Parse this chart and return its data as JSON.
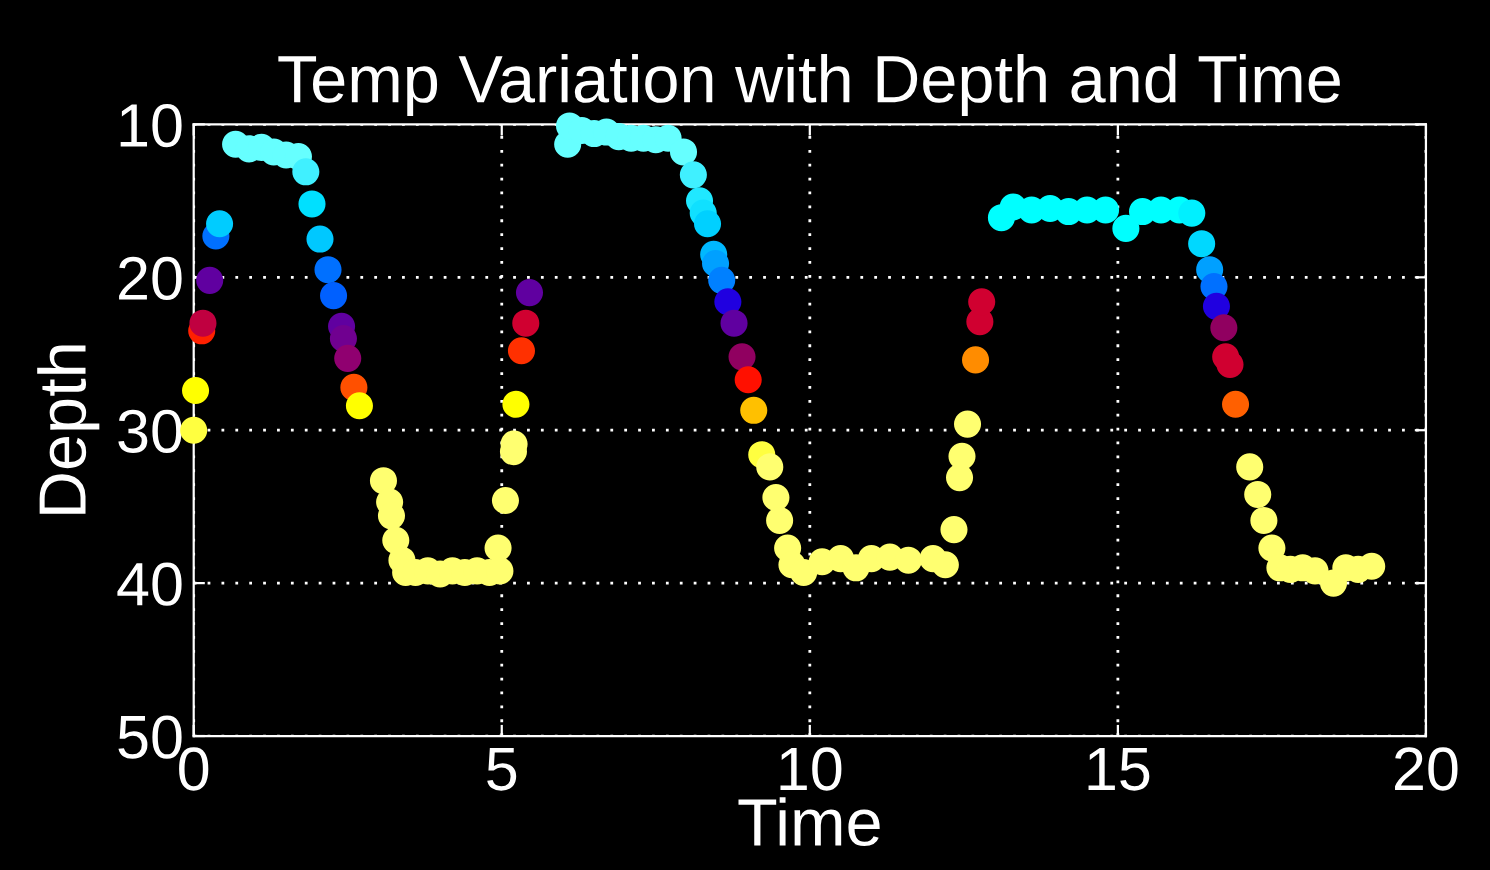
{
  "chart_data": {
    "type": "scatter",
    "title": "Temp Variation with Depth and Time",
    "xlabel": "Time",
    "ylabel": "Depth",
    "xlim": [
      0,
      20
    ],
    "xticks": [
      0,
      5,
      10,
      15,
      20
    ],
    "ylim": [
      50,
      10
    ],
    "yticks": [
      10,
      20,
      30,
      40,
      50
    ],
    "grid": true,
    "marker": "circle",
    "x": [
      0.0,
      0.03,
      0.13,
      0.15,
      0.26,
      0.36,
      0.42,
      0.68,
      0.9,
      1.1,
      1.3,
      1.5,
      1.7,
      1.82,
      1.92,
      2.05,
      2.18,
      2.27,
      2.4,
      2.43,
      2.5,
      2.6,
      2.69,
      3.08,
      3.18,
      3.21,
      3.28,
      3.38,
      3.44,
      3.6,
      3.8,
      4.0,
      4.2,
      4.4,
      4.6,
      4.8,
      4.94,
      4.97,
      5.06,
      5.19,
      5.2,
      5.23,
      5.32,
      5.39,
      5.45,
      6.07,
      6.1,
      6.3,
      6.5,
      6.7,
      6.9,
      7.1,
      7.3,
      7.5,
      7.7,
      7.95,
      8.11,
      8.21,
      8.27,
      8.34,
      8.44,
      8.47,
      8.57,
      8.67,
      8.77,
      8.9,
      9.0,
      9.09,
      9.22,
      9.35,
      9.45,
      9.51,
      9.64,
      9.71,
      9.9,
      10.2,
      10.5,
      10.75,
      11.0,
      11.3,
      11.6,
      12.0,
      12.2,
      12.34,
      12.43,
      12.47,
      12.56,
      12.69,
      12.76,
      12.79,
      13.11,
      13.3,
      13.6,
      13.9,
      14.2,
      14.5,
      14.8,
      15.13,
      15.4,
      15.7,
      16.0,
      16.2,
      16.36,
      16.49,
      16.56,
      16.6,
      16.72,
      16.75,
      16.82,
      16.91,
      17.14,
      17.27,
      17.37,
      17.5,
      17.63,
      17.8,
      18.0,
      18.2,
      18.5,
      18.7,
      18.9,
      19.12
    ],
    "values": [
      30.0,
      27.4,
      23.5,
      23.0,
      20.2,
      17.3,
      16.5,
      11.3,
      11.6,
      11.5,
      11.8,
      12.0,
      12.1,
      13.1,
      15.2,
      17.5,
      19.5,
      21.2,
      23.2,
      24.0,
      25.3,
      27.2,
      28.4,
      33.3,
      34.7,
      35.6,
      37.2,
      38.5,
      39.3,
      39.3,
      39.2,
      39.4,
      39.2,
      39.3,
      39.2,
      39.3,
      37.7,
      39.2,
      34.6,
      31.4,
      30.9,
      28.3,
      24.8,
      23.0,
      21.0,
      11.3,
      10.1,
      10.4,
      10.6,
      10.5,
      10.8,
      10.9,
      10.9,
      11.0,
      10.9,
      11.8,
      13.3,
      15.0,
      15.8,
      16.5,
      18.5,
      19.1,
      20.2,
      21.6,
      23.0,
      25.2,
      26.7,
      28.7,
      31.6,
      32.4,
      34.4,
      35.9,
      37.7,
      38.8,
      39.3,
      38.6,
      38.4,
      39.0,
      38.4,
      38.3,
      38.5,
      38.4,
      38.8,
      36.5,
      33.1,
      31.7,
      29.6,
      25.4,
      22.9,
      21.6,
      16.1,
      15.4,
      15.6,
      15.5,
      15.7,
      15.6,
      15.6,
      16.8,
      15.7,
      15.6,
      15.6,
      15.8,
      17.8,
      19.5,
      20.6,
      21.9,
      23.3,
      25.2,
      25.7,
      28.3,
      32.4,
      34.2,
      35.9,
      37.7,
      39.0,
      39.1,
      39.0,
      39.2,
      40.0,
      39.0,
      39.1,
      38.9
    ],
    "colors": [
      "#ffff40",
      "#ffff00",
      "#ff2000",
      "#c00040",
      "#6000a0",
      "#0070ff",
      "#00ccff",
      "#66ffff",
      "#66ffff",
      "#66ffff",
      "#66ffff",
      "#66ffff",
      "#66ffff",
      "#40f0ff",
      "#00e0ff",
      "#00c8ff",
      "#0070ff",
      "#0060ff",
      "#6000a0",
      "#700090",
      "#900070",
      "#ff5000",
      "#ffff00",
      "#ffff70",
      "#ffff70",
      "#ffff70",
      "#ffff70",
      "#ffff70",
      "#ffff70",
      "#ffff70",
      "#ffff70",
      "#ffff70",
      "#ffff70",
      "#ffff70",
      "#ffff70",
      "#ffff70",
      "#ffff70",
      "#ffff70",
      "#ffff70",
      "#ffff70",
      "#ffff70",
      "#ffff00",
      "#ff3000",
      "#d00030",
      "#6000a0",
      "#66ffff",
      "#66ffff",
      "#66ffff",
      "#66ffff",
      "#66ffff",
      "#66ffff",
      "#66ffff",
      "#66ffff",
      "#66ffff",
      "#66ffff",
      "#66ffff",
      "#40f0ff",
      "#20e8ff",
      "#10e0ff",
      "#00d0ff",
      "#00b8ff",
      "#00a0ff",
      "#0080ff",
      "#2000e0",
      "#6000a0",
      "#900060",
      "#ff1000",
      "#ffc000",
      "#ffff40",
      "#ffff70",
      "#ffff70",
      "#ffff70",
      "#ffff70",
      "#ffff70",
      "#ffff70",
      "#ffff70",
      "#ffff70",
      "#ffff70",
      "#ffff70",
      "#ffff70",
      "#ffff70",
      "#ffff70",
      "#ffff70",
      "#ffff70",
      "#ffff70",
      "#ffff70",
      "#ffff70",
      "#ff8c00",
      "#d00030",
      "#d00030",
      "#00ffff",
      "#00ffff",
      "#00ffff",
      "#00ffff",
      "#00ffff",
      "#00ffff",
      "#00ffff",
      "#00ffff",
      "#00ffff",
      "#00ffff",
      "#00ffff",
      "#00f0ff",
      "#00d8ff",
      "#00a0ff",
      "#0070ff",
      "#2000e0",
      "#900060",
      "#d00030",
      "#d00030",
      "#ff6000",
      "#ffff70",
      "#ffff70",
      "#ffff70",
      "#ffff70",
      "#ffff70",
      "#ffff70",
      "#ffff70",
      "#ffff70",
      "#ffff70",
      "#ffff70",
      "#ffff70",
      "#ffff70"
    ]
  }
}
